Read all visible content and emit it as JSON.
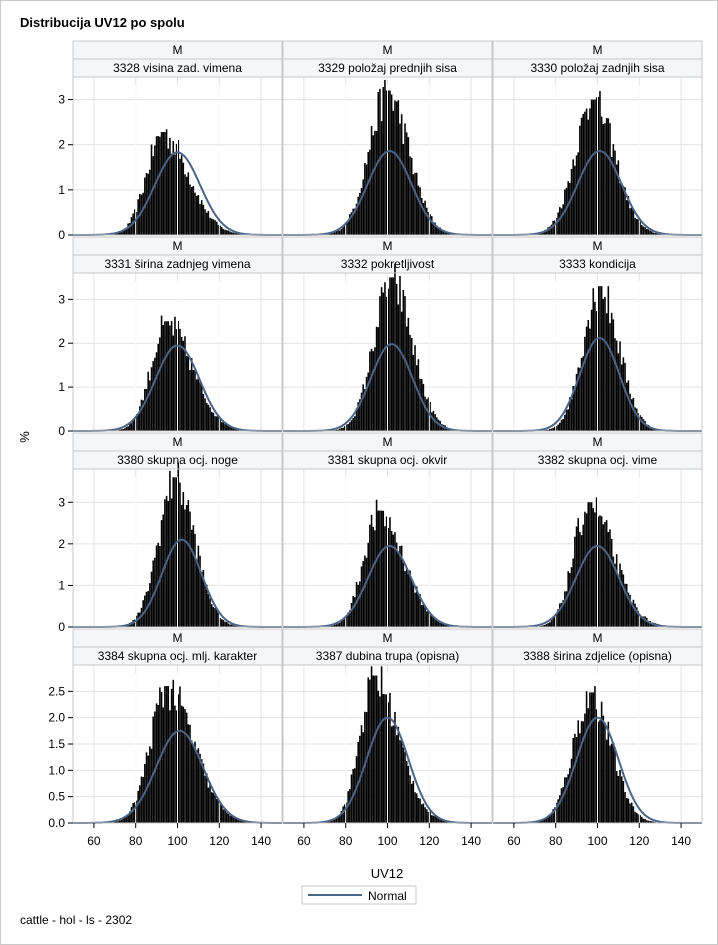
{
  "title": "Distribucija UV12 po spolu",
  "footnote": "cattle - hol - ls - 2302",
  "chart_data": {
    "type": "histogram-panel",
    "xlabel": "UV12",
    "ylabel": "%",
    "xlim": [
      50,
      150
    ],
    "xticks": [
      60,
      80,
      100,
      120,
      140
    ],
    "legend": {
      "position": "bottom-center",
      "entries": [
        "Normal"
      ]
    },
    "grid": true,
    "colors": {
      "bars": "#000000",
      "normal_curve": "#4a6486",
      "grid": "#e2e2e2",
      "header_bg": "#f4f6fa"
    },
    "rows": [
      {
        "ylim": [
          0,
          3.5
        ],
        "yticks": [
          "0",
          "1",
          "2",
          "3"
        ]
      },
      {
        "ylim": [
          0,
          3.6
        ],
        "yticks": [
          "0",
          "1",
          "2",
          "3"
        ]
      },
      {
        "ylim": [
          0,
          3.8
        ],
        "yticks": [
          "0",
          "1",
          "2",
          "3"
        ]
      },
      {
        "ylim": [
          0,
          3.0
        ],
        "yticks": [
          "0.0",
          "0.5",
          "1.0",
          "1.5",
          "2.0",
          "2.5"
        ]
      }
    ],
    "panels": [
      {
        "sex": "M",
        "trait": "3328 visina zad. vimena",
        "mean": 100,
        "sd": 10.8,
        "normal_peak": 1.83,
        "bar_peak": 2.28,
        "bar_peak_x": 93
      },
      {
        "sex": "M",
        "trait": "3329 položaj prednjih sisa",
        "mean": 101,
        "sd": 10.5,
        "normal_peak": 1.86,
        "bar_peak": 3.2,
        "bar_peak_x": 100
      },
      {
        "sex": "M",
        "trait": "3330 položaj zadnjih sisa",
        "mean": 101,
        "sd": 10.5,
        "normal_peak": 1.86,
        "bar_peak": 3.0,
        "bar_peak_x": 98
      },
      {
        "sex": "M",
        "trait": "3331 širina zadnjeg vimena",
        "mean": 100,
        "sd": 10.5,
        "normal_peak": 1.95,
        "bar_peak": 2.5,
        "bar_peak_x": 95
      },
      {
        "sex": "M",
        "trait": "3332 pokretljivost",
        "mean": 102,
        "sd": 10.0,
        "normal_peak": 1.98,
        "bar_peak": 3.5,
        "bar_peak_x": 102
      },
      {
        "sex": "M",
        "trait": "3333 kondicija",
        "mean": 101,
        "sd": 9.5,
        "normal_peak": 2.12,
        "bar_peak": 3.3,
        "bar_peak_x": 101
      },
      {
        "sex": "M",
        "trait": "3380 skupna ocj. noge",
        "mean": 102,
        "sd": 9.5,
        "normal_peak": 2.1,
        "bar_peak": 3.6,
        "bar_peak_x": 99
      },
      {
        "sex": "M",
        "trait": "3381 skupna ocj. okvir",
        "mean": 101,
        "sd": 10.3,
        "normal_peak": 1.95,
        "bar_peak": 2.8,
        "bar_peak_x": 96
      },
      {
        "sex": "M",
        "trait": "3382 skupna ocj. vime",
        "mean": 100,
        "sd": 10.3,
        "normal_peak": 1.95,
        "bar_peak": 3.0,
        "bar_peak_x": 96
      },
      {
        "sex": "M",
        "trait": "3384 skupna ocj. mlj. karakter",
        "mean": 101,
        "sd": 11.2,
        "normal_peak": 1.75,
        "bar_peak": 2.6,
        "bar_peak_x": 95
      },
      {
        "sex": "M",
        "trait": "3387 dubina trupa (opisna)",
        "mean": 100,
        "sd": 10.0,
        "normal_peak": 2.0,
        "bar_peak": 2.8,
        "bar_peak_x": 94
      },
      {
        "sex": "M",
        "trait": "3388 širina zdjelice (opisna)",
        "mean": 100,
        "sd": 10.0,
        "normal_peak": 2.0,
        "bar_peak": 2.48,
        "bar_peak_x": 97
      }
    ]
  }
}
